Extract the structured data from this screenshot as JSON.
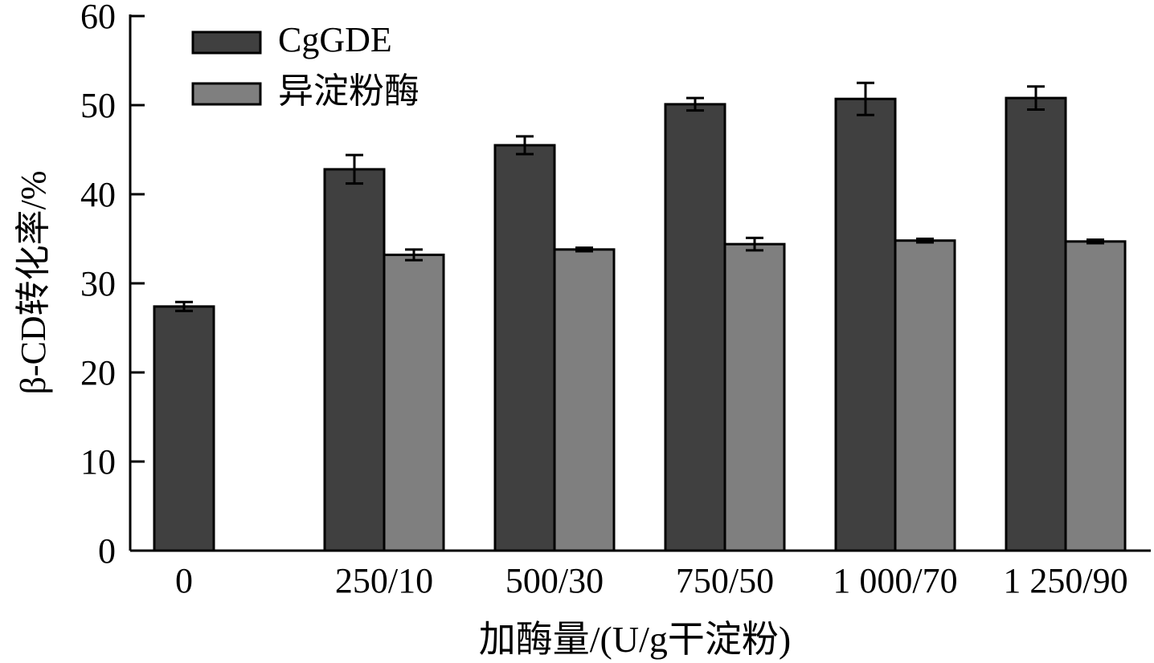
{
  "chart_data": {
    "type": "bar",
    "xlabel": "加酶量/(U/g干淀粉)",
    "ylabel": "β-CD转化率/%",
    "ylim": [
      0,
      60
    ],
    "yticks": [
      0,
      10,
      20,
      30,
      40,
      50,
      60
    ],
    "categories": [
      "0",
      "250/10",
      "500/30",
      "750/50",
      "1 000/70",
      "1 250/90"
    ],
    "legend_position": "top-left",
    "grid": false,
    "series": [
      {
        "name": "CgGDE",
        "color": "#404040",
        "values": [
          27.4,
          42.8,
          45.5,
          50.1,
          50.7,
          50.8
        ],
        "errors": [
          0.5,
          1.6,
          1.0,
          0.7,
          1.8,
          1.3
        ]
      },
      {
        "name": "异淀粉酶",
        "color": "#7f7f7f",
        "values": [
          null,
          33.2,
          33.8,
          34.4,
          34.8,
          34.7
        ],
        "errors": [
          null,
          0.6,
          0.2,
          0.7,
          0.2,
          0.2
        ]
      }
    ]
  }
}
